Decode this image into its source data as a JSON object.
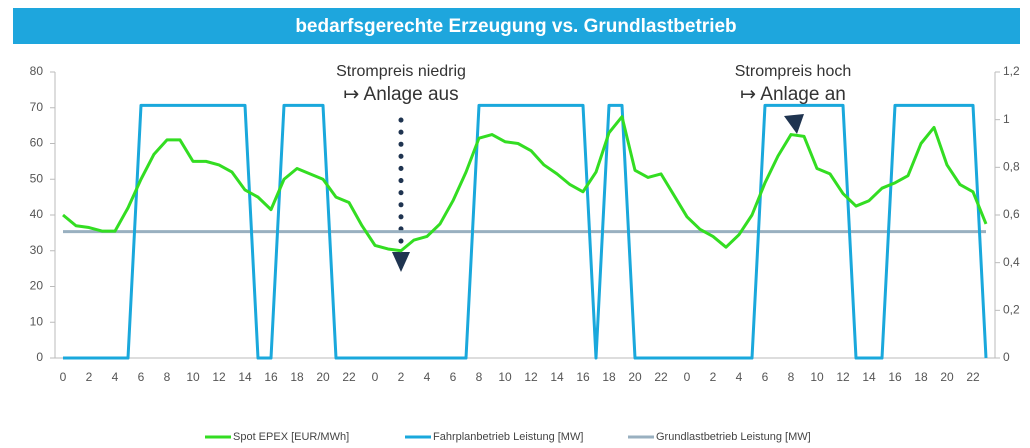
{
  "chart_data": {
    "type": "line",
    "title": "bedarfsgerechte Erzeugung vs. Grundlastbetrieb",
    "categories": [
      "0",
      null,
      "2",
      null,
      "4",
      null,
      "6",
      null,
      "8",
      null,
      "10",
      null,
      "12",
      null,
      "14",
      null,
      "16",
      null,
      "18",
      null,
      "20",
      null,
      "22",
      null,
      "0",
      null,
      "2",
      null,
      "4",
      null,
      "6",
      null,
      "8",
      null,
      "10",
      null,
      "12",
      null,
      "14",
      null,
      "16",
      null,
      "18",
      null,
      "20",
      null,
      "22",
      null,
      "0",
      null,
      "2",
      null,
      "4",
      null,
      "6",
      null,
      "8",
      null,
      "10",
      null,
      "12",
      null,
      "14",
      null,
      "16",
      null,
      "18",
      null,
      "20",
      null,
      "22",
      null
    ],
    "series": [
      {
        "name": "Spot EPEX [EUR/MWh]",
        "color": "#33dd22",
        "axis": "y",
        "values": [
          40,
          37,
          36.5,
          35.5,
          35.5,
          42,
          50,
          57,
          61,
          61,
          55,
          55,
          54,
          52,
          47,
          45,
          41.5,
          50,
          53,
          51.5,
          50,
          45,
          43.5,
          37,
          31.5,
          30.5,
          30,
          33,
          34,
          37.5,
          44,
          52,
          61.5,
          62.5,
          60.5,
          60,
          58,
          54,
          51.5,
          48.5,
          46.5,
          52,
          63,
          67.5,
          52.5,
          50.5,
          51.5,
          45.5,
          39.5,
          36,
          34,
          31,
          34.5,
          40,
          49,
          56.5,
          62.5,
          62,
          53,
          51.5,
          46,
          42.5,
          44,
          47.5,
          49,
          51,
          60,
          64.5,
          54,
          48.5,
          46.5,
          37.5
        ]
      },
      {
        "name": "Fahrplanbetrieb Leistung [MW]",
        "color": "#1aa8dc",
        "axis": "y2",
        "values": [
          0,
          0,
          0,
          0,
          0,
          0,
          1.06,
          1.06,
          1.06,
          1.06,
          1.06,
          1.06,
          1.06,
          1.06,
          1.06,
          0,
          0,
          1.06,
          1.06,
          1.06,
          1.06,
          0,
          0,
          0,
          0,
          0,
          0,
          0,
          0,
          0,
          0,
          0,
          1.06,
          1.06,
          1.06,
          1.06,
          1.06,
          1.06,
          1.06,
          1.06,
          1.06,
          0,
          1.06,
          1.06,
          0,
          0,
          0,
          0,
          0,
          0,
          0,
          0,
          0,
          0,
          1.06,
          1.06,
          1.06,
          1.06,
          1.06,
          1.06,
          1.06,
          0,
          0,
          0,
          1.06,
          1.06,
          1.06,
          1.06,
          1.06,
          1.06,
          1.06,
          0
        ]
      },
      {
        "name": "Grundlastbetrieb Leistung [MW]",
        "color": "#99b0c0",
        "axis": "y2",
        "values": [
          0.53,
          0.53,
          0.53,
          0.53,
          0.53,
          0.53,
          0.53,
          0.53,
          0.53,
          0.53,
          0.53,
          0.53,
          0.53,
          0.53,
          0.53,
          0.53,
          0.53,
          0.53,
          0.53,
          0.53,
          0.53,
          0.53,
          0.53,
          0.53,
          0.53,
          0.53,
          0.53,
          0.53,
          0.53,
          0.53,
          0.53,
          0.53,
          0.53,
          0.53,
          0.53,
          0.53,
          0.53,
          0.53,
          0.53,
          0.53,
          0.53,
          0.53,
          0.53,
          0.53,
          0.53,
          0.53,
          0.53,
          0.53,
          0.53,
          0.53,
          0.53,
          0.53,
          0.53,
          0.53,
          0.53,
          0.53,
          0.53,
          0.53,
          0.53,
          0.53,
          0.53,
          0.53,
          0.53,
          0.53,
          0.53,
          0.53,
          0.53,
          0.53,
          0.53,
          0.53,
          0.53,
          0.53
        ]
      }
    ],
    "ylim": [
      0,
      80
    ],
    "yticks": [
      0,
      10,
      20,
      30,
      40,
      50,
      60,
      70,
      80
    ],
    "y2lim": [
      0,
      1.2
    ],
    "y2ticks": [
      0,
      {
        "value": 0.2,
        "label": "0,2"
      },
      {
        "value": 0.4,
        "label": "0,4"
      },
      {
        "value": 0.6,
        "label": "0,6"
      },
      {
        "value": 0.8,
        "label": "0,8"
      },
      1,
      {
        "value": 1.2,
        "label": "1,2"
      }
    ],
    "annotations": [
      {
        "lines": [
          "Strompreis niedrig",
          "↦ Anlage aus"
        ]
      },
      {
        "lines": [
          "Strompreis hoch",
          "↦ Anlage an"
        ]
      }
    ],
    "grid": false,
    "legend": "bottom"
  }
}
